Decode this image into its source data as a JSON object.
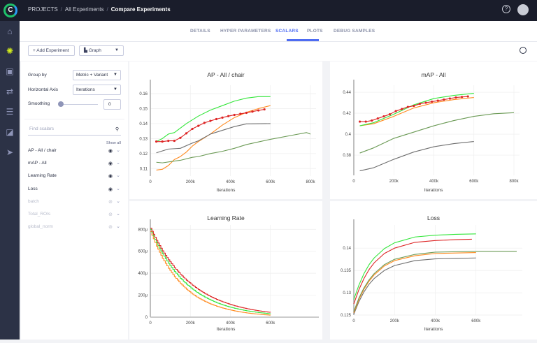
{
  "topbar": {
    "logo_letter": "C",
    "breadcrumb": [
      "PROJECTS",
      "All Experiments",
      "Compare Experiments"
    ],
    "help_icon": "question-icon",
    "avatar_icon": "user-icon"
  },
  "sidenav": {
    "items": [
      "home-icon",
      "brain-icon",
      "images-icon",
      "pipelines-icon",
      "datasets-icon",
      "annotate-icon",
      "deploy-icon"
    ],
    "active": 1
  },
  "tabs": {
    "items": [
      "DETAILS",
      "HYPER PARAMETERS",
      "SCALARS",
      "PLOTS",
      "DEBUG SAMPLES"
    ],
    "active": "SCALARS",
    "accent": "#4e6cf2"
  },
  "toolbar": {
    "add_experiment": "Add Experiment",
    "view_select": "Graph"
  },
  "settings": {
    "group_by_label": "Group by",
    "group_by_value": "Metric + Variant",
    "horizontal_axis_label": "Horizontal Axis",
    "horizontal_axis_value": "Iterations",
    "smoothing_label": "Smoothing",
    "smoothing_value": "0"
  },
  "scalars": {
    "search_placeholder": "Find scalars",
    "show_all": "Show all",
    "metrics": [
      {
        "name": "AP - All / chair",
        "visible": true
      },
      {
        "name": "mAP - All",
        "visible": true
      },
      {
        "name": "Learning Rate",
        "visible": true
      },
      {
        "name": "Loss",
        "visible": true
      },
      {
        "name": "batch",
        "visible": false
      },
      {
        "name": "Total_ROIs",
        "visible": false
      },
      {
        "name": "global_norm",
        "visible": false
      }
    ]
  },
  "chart_data": [
    {
      "type": "line",
      "title": "AP - All / chair",
      "xlabel": "Iterations",
      "xlim": [
        0,
        800
      ],
      "ylim": [
        0.105,
        0.1656
      ],
      "grid": true,
      "xticks": [
        0,
        200,
        400,
        600,
        800
      ],
      "xtick_labels": [
        "0",
        "200k",
        "400k",
        "600k",
        "800k"
      ],
      "yticks": [
        0.11,
        0.12,
        0.13,
        0.14,
        0.15,
        0.16
      ],
      "ytick_labels": [
        "0.11",
        "0.12",
        "0.13",
        "0.14",
        "0.15",
        "0.16"
      ],
      "series": [
        {
          "color": "#33e63a",
          "x": [
            30,
            60,
            90,
            120,
            180,
            240,
            300,
            360,
            420,
            480,
            540,
            600
          ],
          "y": [
            0.128,
            0.13,
            0.133,
            0.134,
            0.14,
            0.145,
            0.149,
            0.152,
            0.155,
            0.157,
            0.158,
            0.158
          ]
        },
        {
          "color": "#ff8a1f",
          "x": [
            30,
            60,
            90,
            120,
            150,
            180,
            210,
            240,
            300,
            360,
            420,
            480,
            540,
            600
          ],
          "y": [
            0.109,
            0.1095,
            0.112,
            0.116,
            0.118,
            0.121,
            0.125,
            0.128,
            0.133,
            0.139,
            0.144,
            0.1475,
            0.15,
            0.152
          ]
        },
        {
          "color": "#6f6f6f",
          "x": [
            30,
            90,
            150,
            210,
            240,
            300,
            360,
            420,
            480,
            600
          ],
          "y": [
            0.1205,
            0.123,
            0.1235,
            0.127,
            0.1285,
            0.133,
            0.1355,
            0.138,
            0.1398,
            0.14
          ]
        },
        {
          "color": "#6b9a55",
          "x": [
            30,
            60,
            120,
            150,
            210,
            240,
            300,
            360,
            420,
            480,
            600,
            720,
            780,
            800
          ],
          "y": [
            0.1142,
            0.1138,
            0.115,
            0.1155,
            0.1175,
            0.118,
            0.12,
            0.1215,
            0.1235,
            0.126,
            0.1295,
            0.1325,
            0.134,
            0.133
          ]
        },
        {
          "color": "#dd2424",
          "markers": true,
          "x": [
            30,
            60,
            90,
            120,
            150,
            180,
            210,
            240,
            270,
            300,
            330,
            360,
            390,
            420,
            450,
            480,
            510,
            540,
            570
          ],
          "y": [
            0.128,
            0.128,
            0.1285,
            0.1285,
            0.1305,
            0.1335,
            0.1365,
            0.1385,
            0.1405,
            0.1418,
            0.143,
            0.144,
            0.145,
            0.1458,
            0.1465,
            0.1472,
            0.148,
            0.1488,
            0.1495
          ]
        }
      ]
    },
    {
      "type": "line",
      "title": "mAP - All",
      "xlabel": "Iterations",
      "xlim": [
        0,
        800
      ],
      "ylim": [
        0.3607,
        0.4467
      ],
      "grid": true,
      "xticks": [
        0,
        200,
        400,
        600,
        800
      ],
      "xtick_labels": [
        "0",
        "200k",
        "400k",
        "600k",
        "800k"
      ],
      "yticks": [
        0.38,
        0.4,
        0.42,
        0.44
      ],
      "ytick_labels": [
        "0.38",
        "0.4",
        "0.42",
        "0.44"
      ],
      "series": [
        {
          "color": "#6b9a55",
          "x": [
            30,
            100,
            200,
            300,
            400,
            500,
            600,
            700,
            800
          ],
          "y": [
            0.382,
            0.387,
            0.396,
            0.402,
            0.408,
            0.413,
            0.417,
            0.4195,
            0.4205
          ]
        },
        {
          "color": "#6f6f6f",
          "x": [
            30,
            100,
            200,
            300,
            400,
            500,
            600
          ],
          "y": [
            0.365,
            0.368,
            0.376,
            0.383,
            0.388,
            0.391,
            0.393
          ]
        },
        {
          "color": "#ff8a1f",
          "x": [
            30,
            100,
            200,
            300,
            400,
            500,
            600
          ],
          "y": [
            0.408,
            0.41,
            0.417,
            0.425,
            0.43,
            0.433,
            0.435
          ]
        },
        {
          "color": "#33e63a",
          "x": [
            30,
            100,
            200,
            300,
            400,
            500,
            600
          ],
          "y": [
            0.408,
            0.411,
            0.419,
            0.428,
            0.434,
            0.437,
            0.439
          ]
        },
        {
          "color": "#dd2424",
          "markers": true,
          "x": [
            30,
            60,
            90,
            120,
            150,
            180,
            210,
            240,
            270,
            300,
            330,
            360,
            390,
            420,
            450,
            480,
            510,
            540,
            570
          ],
          "y": [
            0.412,
            0.412,
            0.413,
            0.415,
            0.417,
            0.419,
            0.422,
            0.424,
            0.426,
            0.427,
            0.429,
            0.43,
            0.431,
            0.432,
            0.433,
            0.434,
            0.435,
            0.4355,
            0.436
          ]
        }
      ]
    },
    {
      "type": "line",
      "title": "Learning Rate",
      "xlabel": "Iterations",
      "xlim": [
        0,
        800
      ],
      "ylim": [
        0,
        840
      ],
      "grid": true,
      "step": true,
      "xticks": [
        0,
        200,
        400,
        600
      ],
      "xtick_labels": [
        "0",
        "200k",
        "400k",
        "600k"
      ],
      "yticks": [
        0,
        200,
        400,
        600,
        800
      ],
      "ytick_labels": [
        "0",
        "200μ",
        "400μ",
        "600μ",
        "800μ"
      ],
      "series": [
        {
          "color": "#ff8a1f",
          "x": [
            0,
            30,
            60,
            90,
            120,
            150,
            180,
            210,
            240,
            270,
            300,
            330,
            360,
            390,
            420,
            450,
            480,
            510,
            540,
            570,
            600
          ],
          "y": [
            780,
            647,
            536,
            445,
            369,
            306,
            254,
            210,
            174,
            145,
            120,
            100,
            83,
            69,
            57,
            47,
            39,
            32,
            27,
            22,
            18
          ]
        },
        {
          "color": "#33e63a",
          "x": [
            0,
            30,
            60,
            90,
            120,
            150,
            180,
            210,
            240,
            270,
            300,
            330,
            360,
            390,
            420,
            450,
            480,
            510,
            540,
            570,
            600
          ],
          "y": [
            800,
            679,
            577,
            490,
            416,
            353,
            300,
            255,
            216,
            184,
            156,
            132,
            112,
            95,
            81,
            69,
            58,
            50,
            42,
            36,
            30
          ]
        },
        {
          "color": "#dd2424",
          "x": [
            0,
            30,
            60,
            90,
            120,
            150,
            180,
            210,
            240,
            270,
            300,
            330,
            360,
            390,
            420,
            450,
            480,
            510,
            540,
            570,
            600
          ],
          "y": [
            810,
            700,
            604,
            522,
            451,
            389,
            336,
            291,
            251,
            217,
            187,
            162,
            140,
            121,
            104,
            90,
            78,
            67,
            58,
            50,
            43
          ]
        }
      ]
    },
    {
      "type": "line",
      "title": "Loss",
      "xlabel": "Iterations",
      "xlim": [
        0,
        800
      ],
      "ylim": [
        0.125,
        0.1452
      ],
      "grid": true,
      "xticks": [
        0,
        200,
        400,
        600
      ],
      "xtick_labels": [
        "0",
        "200k",
        "400k",
        "600k"
      ],
      "yticks": [
        0.125,
        0.13,
        0.135,
        0.14
      ],
      "ytick_labels": [
        "0.125",
        "0.13",
        "0.135",
        "0.14"
      ],
      "series": [
        {
          "color": "#6f6f6f",
          "x": [
            0,
            25,
            50,
            75,
            100,
            150,
            200,
            300,
            400,
            500,
            600
          ],
          "y": [
            0.1252,
            0.128,
            0.1302,
            0.1319,
            0.1332,
            0.135,
            0.1361,
            0.1372,
            0.1376,
            0.1377,
            0.1378
          ]
        },
        {
          "color": "#ff8a1f",
          "x": [
            0,
            25,
            50,
            75,
            100,
            150,
            200,
            300,
            400,
            500,
            600
          ],
          "y": [
            0.1255,
            0.1285,
            0.1308,
            0.1326,
            0.134,
            0.136,
            0.1372,
            0.1383,
            0.1388,
            0.1389,
            0.139
          ]
        },
        {
          "color": "#6b9a55",
          "x": [
            0,
            25,
            50,
            75,
            100,
            150,
            200,
            300,
            400,
            500,
            600,
            700,
            800
          ],
          "y": [
            0.1258,
            0.1288,
            0.1311,
            0.1329,
            0.1343,
            0.1363,
            0.1375,
            0.1386,
            0.1391,
            0.1392,
            0.1393,
            0.1393,
            0.1393
          ]
        },
        {
          "color": "#dd2424",
          "x": [
            0,
            25,
            50,
            75,
            100,
            150,
            200,
            300,
            400,
            500,
            580
          ],
          "y": [
            0.1275,
            0.1307,
            0.1332,
            0.1352,
            0.1367,
            0.1388,
            0.14,
            0.1413,
            0.1417,
            0.1419,
            0.142
          ]
        },
        {
          "color": "#33e63a",
          "x": [
            0,
            25,
            50,
            75,
            100,
            150,
            200,
            300,
            400,
            500,
            600
          ],
          "y": [
            0.1285,
            0.1317,
            0.1343,
            0.1363,
            0.1378,
            0.1399,
            0.1412,
            0.1425,
            0.1429,
            0.1431,
            0.1432
          ]
        }
      ]
    }
  ]
}
